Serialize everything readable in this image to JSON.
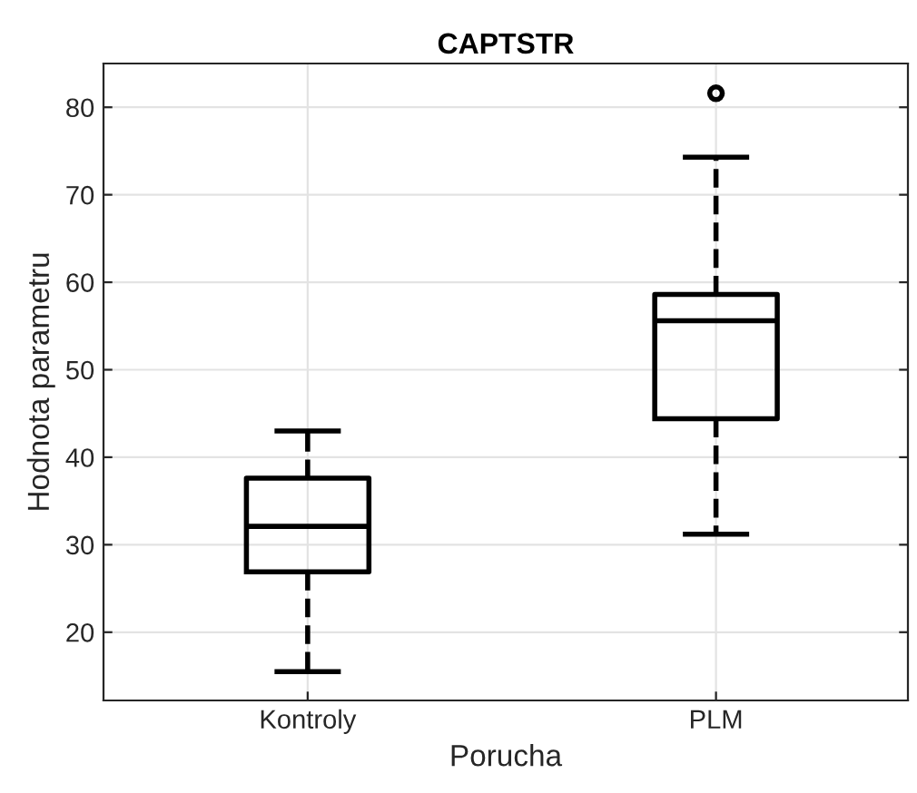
{
  "chart_data": {
    "type": "box",
    "title": "CAPTSTR",
    "xlabel": "Porucha",
    "ylabel": "Hodnota parametru",
    "categories": [
      "Kontroly",
      "PLM"
    ],
    "boxes": [
      {
        "low": 15.5,
        "q1": 26.9,
        "median": 32.1,
        "q3": 37.6,
        "high": 43
      },
      {
        "low": 31.2,
        "q1": 44.4,
        "median": 55.6,
        "q3": 58.6,
        "high": 74.3,
        "outliers": [
          81.6
        ]
      }
    ],
    "ylim": [
      12.2,
      85
    ],
    "yticks": [
      20,
      30,
      40,
      50,
      60,
      70,
      80
    ],
    "grid": true,
    "line_style": "dashed"
  }
}
